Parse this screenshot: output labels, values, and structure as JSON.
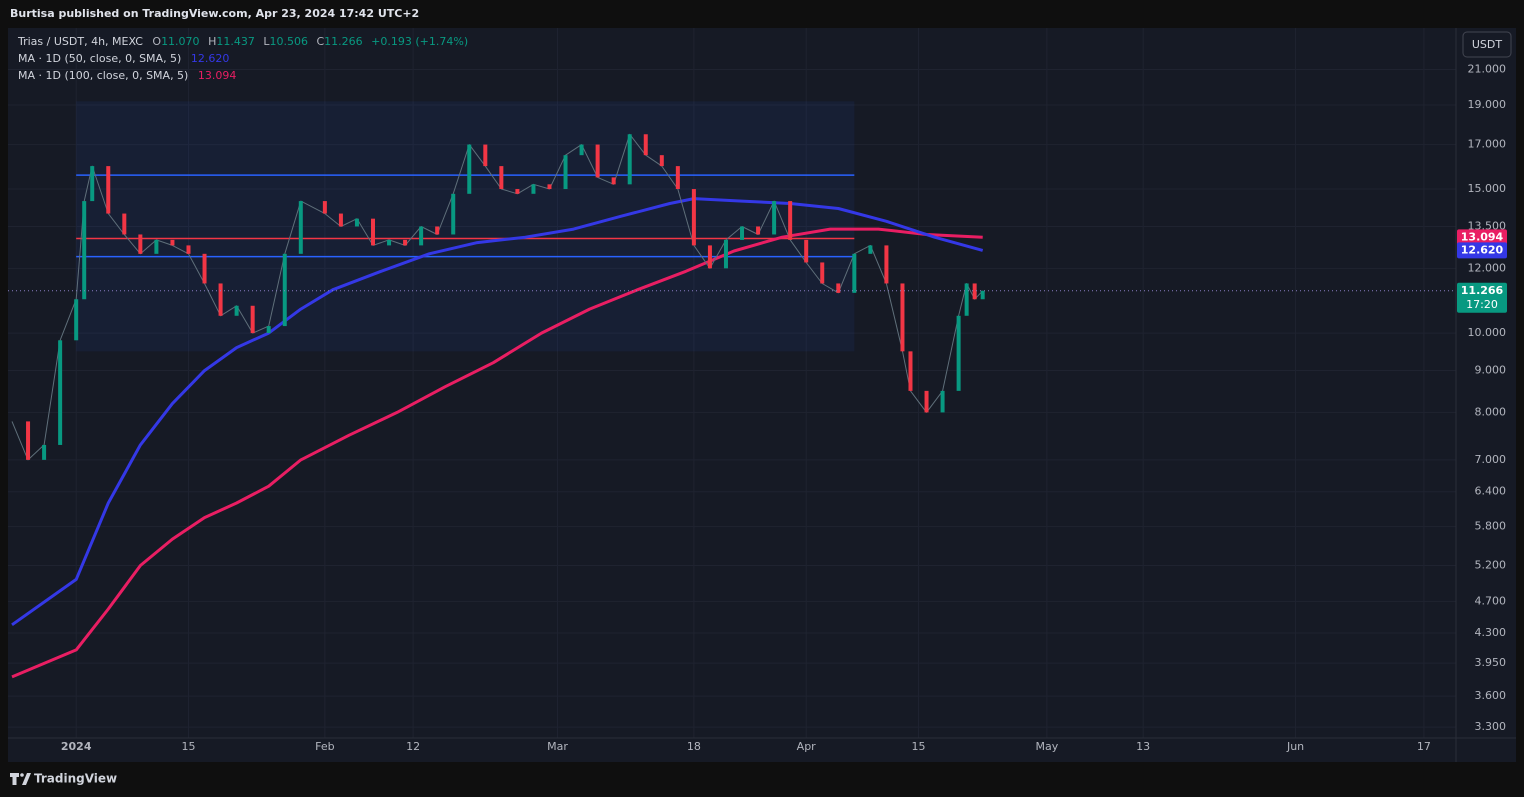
{
  "header": {
    "text": "Burtisa published on TradingView.com, Apr 23, 2024 17:42 UTC+2"
  },
  "footer": {
    "brand": "TradingView"
  },
  "chart_data": {
    "type": "candlestick",
    "currency": "USDT",
    "log_scale": true,
    "grid": true,
    "xlim": [
      "2023-12-24",
      "2024-06-21"
    ],
    "xticks": [
      {
        "value": "2024-01-01",
        "label": "2024"
      },
      {
        "value": "2024-01-15",
        "label": "15"
      },
      {
        "value": "2024-02-01",
        "label": "Feb"
      },
      {
        "value": "2024-02-12",
        "label": "12"
      },
      {
        "value": "2024-03-01",
        "label": "Mar"
      },
      {
        "value": "2024-03-18",
        "label": "18"
      },
      {
        "value": "2024-04-01",
        "label": "Apr"
      },
      {
        "value": "2024-04-15",
        "label": "15"
      },
      {
        "value": "2024-05-01",
        "label": "May"
      },
      {
        "value": "2024-05-13",
        "label": "13"
      },
      {
        "value": "2024-06-01",
        "label": "Jun"
      },
      {
        "value": "2024-06-17",
        "label": "17"
      }
    ],
    "ylim": [
      3.2,
      23.6
    ],
    "yticks": [
      {
        "value": 3.3,
        "label": "3.300"
      },
      {
        "value": 3.6,
        "label": "3.600"
      },
      {
        "value": 3.95,
        "label": "3.950"
      },
      {
        "value": 4.3,
        "label": "4.300"
      },
      {
        "value": 4.7,
        "label": "4.700"
      },
      {
        "value": 5.2,
        "label": "5.200"
      },
      {
        "value": 5.8,
        "label": "5.800"
      },
      {
        "value": 6.4,
        "label": "6.400"
      },
      {
        "value": 7,
        "label": "7.000"
      },
      {
        "value": 8,
        "label": "8.000"
      },
      {
        "value": 9,
        "label": "9.000"
      },
      {
        "value": 10,
        "label": "10.000"
      },
      {
        "value": 12,
        "label": "12.000"
      },
      {
        "value": 13.5,
        "label": "13.500"
      },
      {
        "value": 15,
        "label": "15.000"
      },
      {
        "value": 17,
        "label": "17.000"
      },
      {
        "value": 19,
        "label": "19.000"
      },
      {
        "value": 21,
        "label": "21.000"
      }
    ],
    "volume_profile": {
      "start": "2024-01-01",
      "end": "2024-04-07",
      "top": 19.2,
      "bottom": 9.5,
      "value_area_high": 15.6,
      "poc": 13.05,
      "value_area_low": 12.4,
      "color": "#2962ff",
      "poc_color": "#f23645"
    },
    "series": [
      {
        "name": "Trias / USDT, 4h, MEXC",
        "up_color": "#089981",
        "down_color": "#f23645",
        "ohlc": [
          {
            "key": "O",
            "value": 11.07,
            "label": "11.070"
          },
          {
            "key": "H",
            "value": 11.437,
            "label": "11.437"
          },
          {
            "key": "L",
            "value": 10.506,
            "label": "10.506"
          },
          {
            "key": "C",
            "value": 11.266,
            "label": "11.266"
          }
        ],
        "change": "+0.193 (+1.74%)",
        "countdown": "17:20",
        "x": [
          "2023-12-24",
          "2023-12-26",
          "2023-12-28",
          "2023-12-30",
          "2024-01-01",
          "2024-01-02",
          "2024-01-03",
          "2024-01-05",
          "2024-01-07",
          "2024-01-09",
          "2024-01-11",
          "2024-01-13",
          "2024-01-15",
          "2024-01-17",
          "2024-01-19",
          "2024-01-21",
          "2024-01-23",
          "2024-01-25",
          "2024-01-27",
          "2024-01-29",
          "2024-02-01",
          "2024-02-03",
          "2024-02-05",
          "2024-02-07",
          "2024-02-09",
          "2024-02-11",
          "2024-02-13",
          "2024-02-15",
          "2024-02-17",
          "2024-02-19",
          "2024-02-21",
          "2024-02-23",
          "2024-02-25",
          "2024-02-27",
          "2024-02-29",
          "2024-03-02",
          "2024-03-04",
          "2024-03-06",
          "2024-03-08",
          "2024-03-10",
          "2024-03-12",
          "2024-03-14",
          "2024-03-16",
          "2024-03-18",
          "2024-03-20",
          "2024-03-22",
          "2024-03-24",
          "2024-03-26",
          "2024-03-28",
          "2024-03-30",
          "2024-04-01",
          "2024-04-03",
          "2024-04-05",
          "2024-04-07",
          "2024-04-09",
          "2024-04-11",
          "2024-04-13",
          "2024-04-14",
          "2024-04-16",
          "2024-04-18",
          "2024-04-20",
          "2024-04-21",
          "2024-04-22",
          "2024-04-23"
        ],
        "values": [
          7.8,
          7.0,
          7.3,
          9.8,
          11.0,
          14.5,
          16.0,
          14.0,
          13.2,
          12.5,
          13.0,
          12.8,
          12.5,
          11.5,
          10.5,
          10.8,
          10.0,
          10.2,
          12.5,
          14.5,
          14.0,
          13.5,
          13.8,
          12.8,
          13.0,
          12.8,
          13.5,
          13.2,
          14.8,
          17.0,
          16.0,
          15.0,
          14.8,
          15.2,
          15.0,
          16.5,
          17.0,
          15.5,
          15.2,
          17.5,
          16.5,
          16.0,
          15.0,
          12.8,
          12.0,
          13.0,
          13.5,
          13.2,
          14.5,
          13.0,
          12.2,
          11.5,
          11.2,
          12.5,
          12.8,
          11.5,
          9.5,
          8.5,
          8.0,
          8.5,
          10.5,
          11.5,
          11.0,
          11.266
        ]
      },
      {
        "name": "MA · 1D (50, close, 0, SMA, 5)",
        "color": "#3438e6",
        "last": {
          "value": 12.62,
          "label": "12.620"
        },
        "x": [
          "2023-12-24",
          "2024-01-01",
          "2024-01-05",
          "2024-01-09",
          "2024-01-13",
          "2024-01-17",
          "2024-01-21",
          "2024-01-25",
          "2024-01-29",
          "2024-02-02",
          "2024-02-08",
          "2024-02-14",
          "2024-02-20",
          "2024-02-26",
          "2024-03-03",
          "2024-03-09",
          "2024-03-15",
          "2024-03-18",
          "2024-03-24",
          "2024-03-30",
          "2024-04-05",
          "2024-04-11",
          "2024-04-17",
          "2024-04-23"
        ],
        "values": [
          4.4,
          5.0,
          6.2,
          7.3,
          8.2,
          9.0,
          9.6,
          10.0,
          10.7,
          11.3,
          11.9,
          12.5,
          12.9,
          13.1,
          13.4,
          13.9,
          14.4,
          14.6,
          14.5,
          14.4,
          14.2,
          13.7,
          13.1,
          12.62
        ]
      },
      {
        "name": "MA · 1D (100, close, 0, SMA, 5)",
        "color": "#e91e63",
        "last": {
          "value": 13.094,
          "label": "13.094"
        },
        "x": [
          "2023-12-24",
          "2024-01-01",
          "2024-01-05",
          "2024-01-09",
          "2024-01-13",
          "2024-01-17",
          "2024-01-21",
          "2024-01-25",
          "2024-01-29",
          "2024-02-04",
          "2024-02-10",
          "2024-02-16",
          "2024-02-22",
          "2024-02-28",
          "2024-03-05",
          "2024-03-11",
          "2024-03-17",
          "2024-03-23",
          "2024-03-29",
          "2024-04-04",
          "2024-04-10",
          "2024-04-16",
          "2024-04-23"
        ],
        "values": [
          3.8,
          4.1,
          4.6,
          5.2,
          5.6,
          5.95,
          6.2,
          6.5,
          7.0,
          7.5,
          8.0,
          8.6,
          9.2,
          10.0,
          10.7,
          11.3,
          11.9,
          12.6,
          13.1,
          13.4,
          13.4,
          13.2,
          13.094
        ]
      }
    ]
  }
}
